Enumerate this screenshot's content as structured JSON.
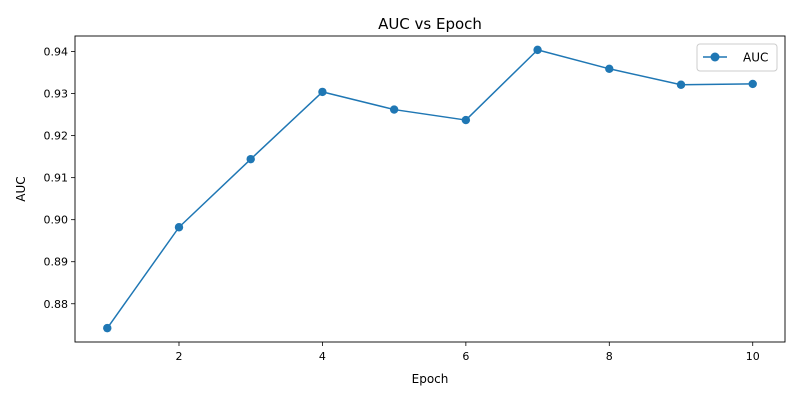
{
  "chart_data": {
    "type": "line",
    "title": "AUC vs Epoch",
    "xlabel": "Epoch",
    "ylabel": "AUC",
    "xlim": [
      0.55,
      10.45
    ],
    "ylim": [
      0.8709,
      0.9437
    ],
    "xticks": [
      2,
      4,
      6,
      8,
      10
    ],
    "yticks": [
      0.88,
      0.89,
      0.9,
      0.91,
      0.92,
      0.93,
      0.94
    ],
    "ytick_labels": [
      "0.88",
      "0.89",
      "0.90",
      "0.91",
      "0.92",
      "0.93",
      "0.94"
    ],
    "grid": false,
    "legend": "top-right",
    "series": [
      {
        "name": "AUC",
        "color": "#1f77b4",
        "marker": "circle",
        "x": [
          1,
          2,
          3,
          4,
          5,
          6,
          7,
          8,
          9,
          10
        ],
        "y": [
          0.8742,
          0.8982,
          0.9144,
          0.9304,
          0.9262,
          0.9237,
          0.9404,
          0.9359,
          0.9321,
          0.9323
        ]
      }
    ]
  }
}
